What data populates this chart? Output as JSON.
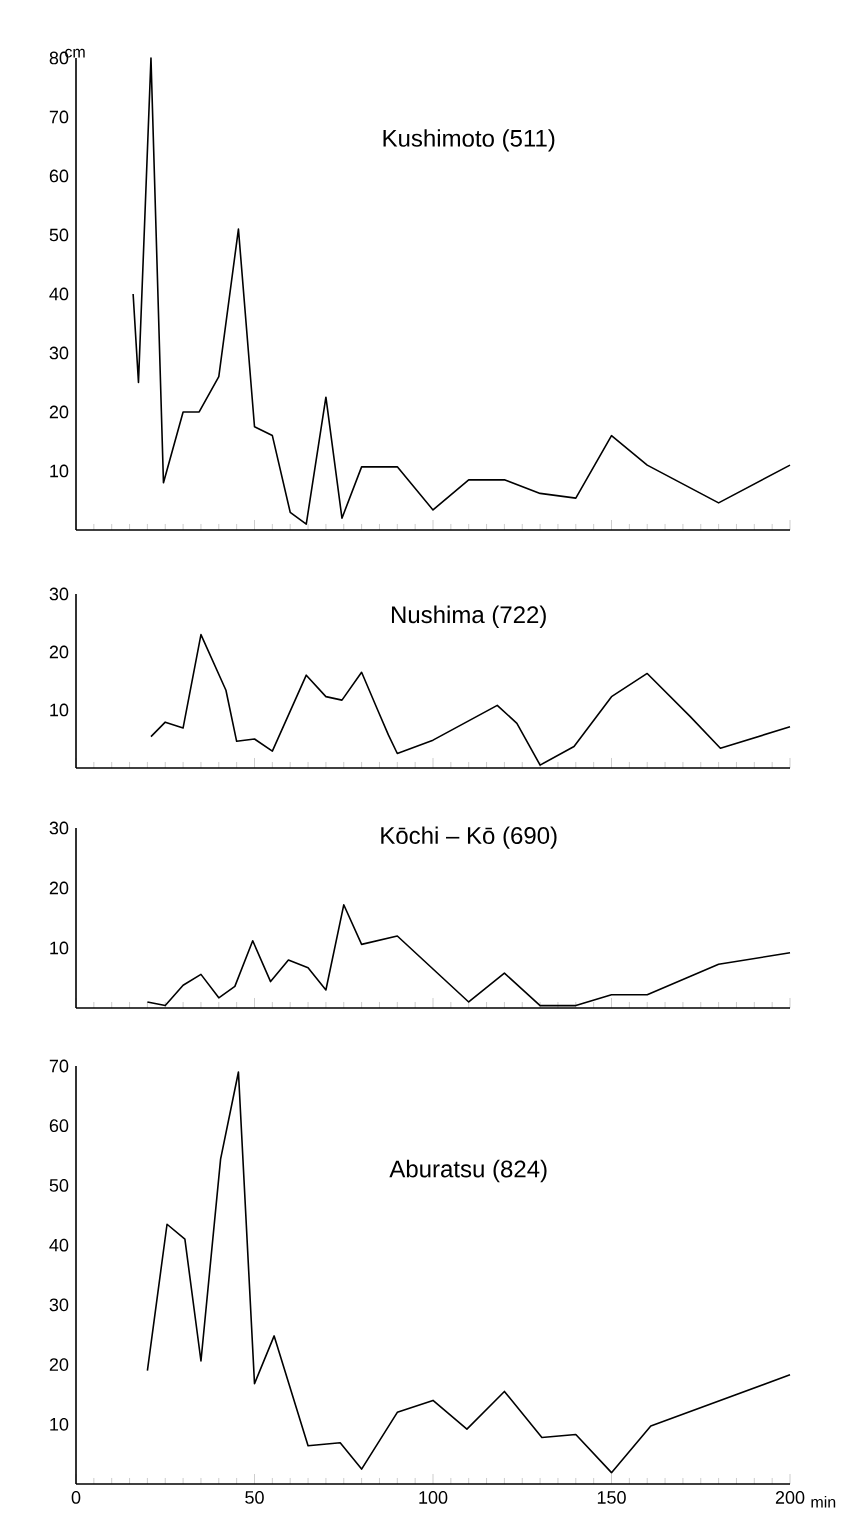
{
  "chart_data": [
    {
      "type": "line",
      "title": "Kushimoto (511)",
      "ylabel": "cm",
      "color": "#000000",
      "xlim": [
        0,
        200
      ],
      "ylim": [
        0,
        80
      ],
      "xticks": [
        0,
        50,
        100,
        150,
        200
      ],
      "yticks": [
        10,
        20,
        30,
        40,
        50,
        60,
        70,
        80
      ],
      "tick_labels": "y",
      "x": [
        16,
        17.5,
        21,
        24.5,
        30,
        34.5,
        40,
        45.5,
        50,
        55,
        60,
        64.5,
        70,
        74.5,
        80,
        90,
        100,
        110,
        120,
        130,
        140,
        150,
        160,
        180,
        200
      ],
      "values": [
        40,
        25,
        80,
        8,
        20,
        20,
        26,
        51,
        17.5,
        16,
        3,
        1,
        22.5,
        2,
        10.7,
        10.7,
        3.4,
        8.5,
        8.5,
        6.2,
        5.4,
        16,
        11,
        4.6,
        11
      ]
    },
    {
      "type": "line",
      "title": "Nushima (722)",
      "color": "#000000",
      "xlim": [
        0,
        200
      ],
      "ylim": [
        0,
        30
      ],
      "xticks": [
        0,
        50,
        100,
        150,
        200
      ],
      "yticks": [
        10,
        20,
        30
      ],
      "tick_labels": "y",
      "x": [
        21,
        25,
        30,
        35,
        42,
        45,
        50,
        55,
        64.5,
        70,
        74.5,
        80,
        84.5,
        87.5,
        90,
        100,
        118,
        123.5,
        130,
        139.5,
        150,
        160,
        172,
        180.5,
        200
      ],
      "values": [
        5.4,
        7.9,
        6.9,
        23,
        13.4,
        4.6,
        5,
        2.9,
        16,
        12.3,
        11.7,
        16.5,
        10,
        5.7,
        2.5,
        4.8,
        10.8,
        7.7,
        0.5,
        3.7,
        12.3,
        16.3,
        8.9,
        3.4,
        7.1
      ]
    },
    {
      "type": "line",
      "title": "Kōchi – Kō (690)",
      "color": "#000000",
      "xlim": [
        0,
        200
      ],
      "ylim": [
        0,
        30
      ],
      "xticks": [
        0,
        50,
        100,
        150,
        200
      ],
      "yticks": [
        10,
        20,
        30
      ],
      "tick_labels": "y",
      "x": [
        20,
        25,
        30,
        35,
        40,
        44.5,
        49.5,
        54.5,
        59.5,
        65,
        70,
        75,
        80,
        90,
        110,
        120,
        130,
        140,
        150,
        160,
        180,
        200
      ],
      "values": [
        1,
        0.4,
        3.8,
        5.6,
        1.7,
        3.6,
        11.2,
        4.4,
        8,
        6.7,
        3,
        17.2,
        10.6,
        12,
        1,
        5.8,
        0.4,
        0.4,
        2.2,
        2.2,
        7.3,
        9.2
      ]
    },
    {
      "type": "line",
      "title": "Aburatsu (824)",
      "xlabel": "min",
      "color": "#000000",
      "xlim": [
        0,
        200
      ],
      "ylim": [
        0,
        70
      ],
      "xticks": [
        0,
        50,
        100,
        150,
        200
      ],
      "yticks": [
        10,
        20,
        30,
        40,
        50,
        60,
        70
      ],
      "x": [
        20,
        25.5,
        30.5,
        35,
        40.5,
        45.5,
        50,
        55.5,
        65,
        74,
        80,
        90,
        100,
        109.5,
        120,
        130.5,
        140,
        150,
        161,
        200
      ],
      "values": [
        19,
        43.5,
        41,
        20.6,
        54.4,
        69,
        16.8,
        24.8,
        6.4,
        6.9,
        2.5,
        12,
        14,
        9.2,
        15.5,
        7.8,
        8.3,
        1.9,
        9.7,
        18.3
      ]
    }
  ]
}
